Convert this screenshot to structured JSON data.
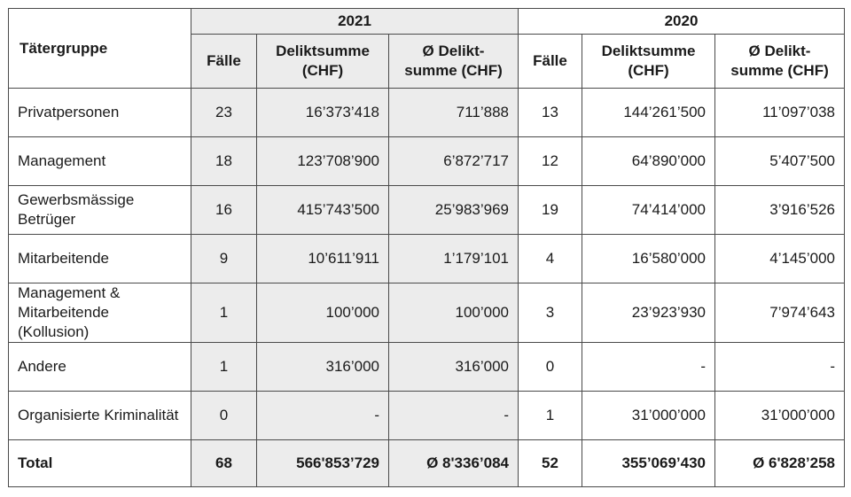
{
  "header": {
    "group_label": "Tätergruppe",
    "year_2021": "2021",
    "year_2020": "2020",
    "cols": {
      "cases": "Fälle",
      "sum": "Deliktsumme (CHF)",
      "avg": "Ø Delikt-summe (CHF)"
    }
  },
  "rows": [
    {
      "group": "Privatpersonen",
      "c21": "23",
      "s21": "16’373’418",
      "a21": "711’888",
      "c20": "13",
      "s20": "144’261’500",
      "a20": "11’097’038"
    },
    {
      "group": "Management",
      "c21": "18",
      "s21": "123’708’900",
      "a21": "6’872’717",
      "c20": "12",
      "s20": "64’890’000",
      "a20": "5’407’500"
    },
    {
      "group": "Gewerbsmässige Betrüger",
      "c21": "16",
      "s21": "415’743’500",
      "a21": "25’983’969",
      "c20": "19",
      "s20": "74’414’000",
      "a20": "3’916’526"
    },
    {
      "group": "Mitarbeitende",
      "c21": "9",
      "s21": "10’611’911",
      "a21": "1’179’101",
      "c20": "4",
      "s20": "16’580’000",
      "a20": "4’145’000"
    },
    {
      "group": "Management & Mitarbeitende (Kollusion)",
      "c21": "1",
      "s21": "100’000",
      "a21": "100’000",
      "c20": "3",
      "s20": "23’923’930",
      "a20": "7’974’643"
    },
    {
      "group": "Andere",
      "c21": "1",
      "s21": "316’000",
      "a21": "316’000",
      "c20": "0",
      "s20": "-",
      "a20": "-"
    },
    {
      "group": "Organisierte Kriminalität",
      "c21": "0",
      "s21": "-",
      "a21": "-",
      "c20": "1",
      "s20": "31’000’000",
      "a20": "31’000’000"
    }
  ],
  "total": {
    "label": "Total",
    "c21": "68",
    "s21": "566'853’729",
    "a21": "Ø 8'336’084",
    "c20": "52",
    "s20": "355’069’430",
    "a20": "Ø 6'828’258"
  },
  "colors": {
    "shade_2021": "#ececec",
    "border": "#4a4a4a"
  }
}
